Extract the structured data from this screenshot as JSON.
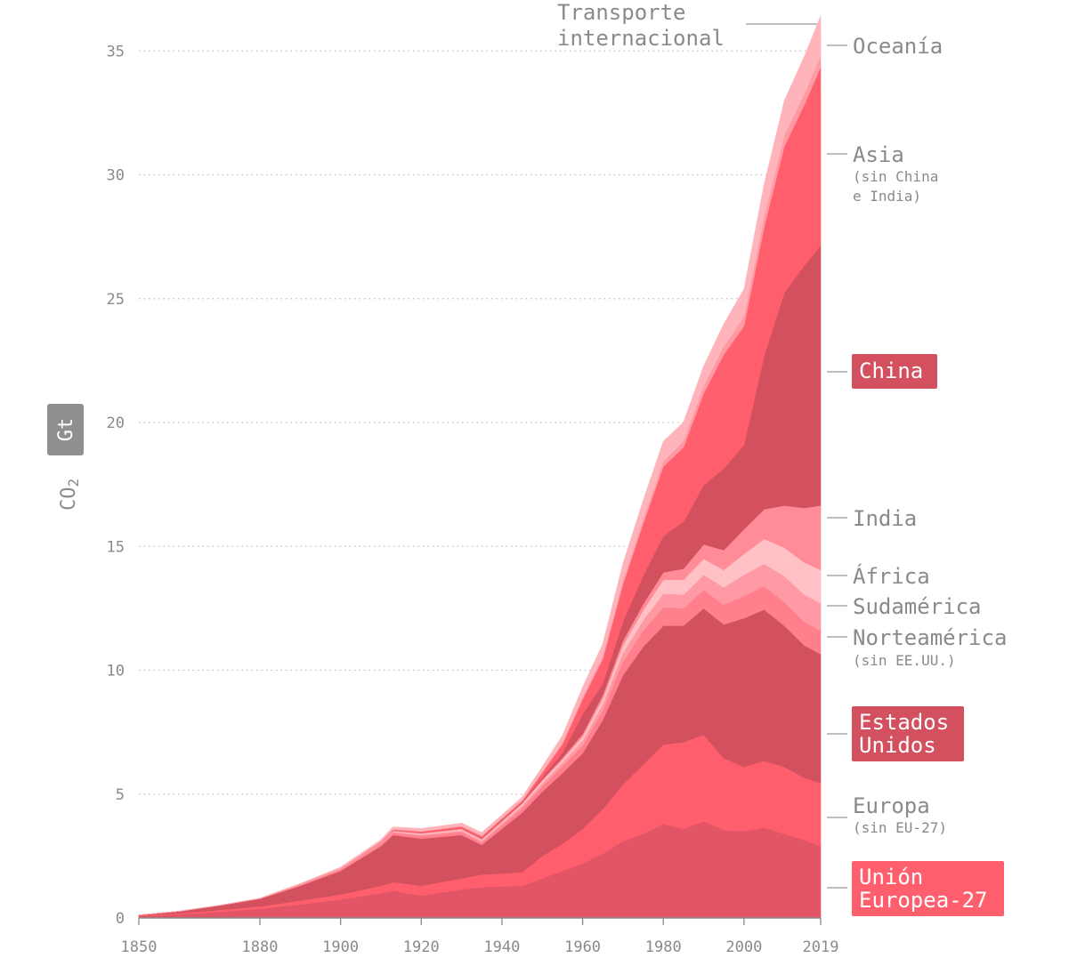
{
  "chart_data": {
    "type": "area",
    "stacked": true,
    "ylabel_main": "CO",
    "ylabel_sub": "2",
    "unit": "Gt",
    "xlim": [
      1850,
      2019
    ],
    "ylim": [
      0,
      36
    ],
    "x_ticks": [
      "1850",
      "1880",
      "1900",
      "1920",
      "1940",
      "1960",
      "1980",
      "2000",
      "2019"
    ],
    "y_ticks": [
      "0",
      "5",
      "10",
      "15",
      "20",
      "25",
      "30",
      "35"
    ],
    "x": [
      1850,
      1860,
      1870,
      1880,
      1890,
      1900,
      1910,
      1913,
      1920,
      1930,
      1935,
      1945,
      1950,
      1955,
      1960,
      1965,
      1970,
      1975,
      1980,
      1985,
      1990,
      1995,
      2000,
      2005,
      2010,
      2015,
      2019
    ],
    "series": [
      {
        "name": "Unión Europea-27",
        "color": "#e25566",
        "values": [
          0.08,
          0.15,
          0.25,
          0.37,
          0.55,
          0.75,
          1.0,
          1.1,
          0.9,
          1.15,
          1.25,
          1.3,
          1.6,
          1.9,
          2.2,
          2.6,
          3.1,
          3.4,
          3.8,
          3.6,
          3.9,
          3.55,
          3.5,
          3.65,
          3.4,
          3.15,
          2.9
        ]
      },
      {
        "name": "Europa (sin EU-27)",
        "color": "#ff5f6d",
        "values": [
          0.02,
          0.04,
          0.07,
          0.1,
          0.15,
          0.2,
          0.3,
          0.35,
          0.4,
          0.45,
          0.5,
          0.55,
          0.9,
          1.1,
          1.4,
          1.8,
          2.3,
          2.8,
          3.2,
          3.5,
          3.5,
          2.9,
          2.6,
          2.7,
          2.7,
          2.5,
          2.55
        ]
      },
      {
        "name": "Estados Unidos",
        "color": "#d3505f",
        "values": [
          0.02,
          0.08,
          0.18,
          0.3,
          0.6,
          0.95,
          1.6,
          1.9,
          1.9,
          1.75,
          1.2,
          2.4,
          2.6,
          2.85,
          3.05,
          3.6,
          4.4,
          4.75,
          4.8,
          4.7,
          5.1,
          5.4,
          6.0,
          6.1,
          5.7,
          5.35,
          5.2
        ]
      },
      {
        "name": "Norteamérica (sin EE.UU.)",
        "color": "#ff808c",
        "values": [
          0.0,
          0.0,
          0.01,
          0.02,
          0.03,
          0.05,
          0.08,
          0.1,
          0.12,
          0.12,
          0.1,
          0.18,
          0.22,
          0.28,
          0.32,
          0.4,
          0.55,
          0.65,
          0.75,
          0.7,
          0.75,
          0.8,
          0.9,
          0.95,
          0.95,
          0.95,
          0.95
        ]
      },
      {
        "name": "Sudamérica",
        "color": "#ff9aa4",
        "values": [
          0.0,
          0.0,
          0.0,
          0.0,
          0.01,
          0.01,
          0.02,
          0.03,
          0.05,
          0.06,
          0.07,
          0.1,
          0.12,
          0.15,
          0.2,
          0.25,
          0.35,
          0.42,
          0.55,
          0.55,
          0.6,
          0.7,
          0.85,
          0.9,
          1.05,
          1.1,
          1.1
        ]
      },
      {
        "name": "África",
        "color": "#ffc0c6",
        "values": [
          0.0,
          0.0,
          0.0,
          0.0,
          0.01,
          0.01,
          0.02,
          0.03,
          0.04,
          0.05,
          0.05,
          0.08,
          0.1,
          0.12,
          0.15,
          0.2,
          0.3,
          0.4,
          0.55,
          0.6,
          0.65,
          0.7,
          0.85,
          1.0,
          1.15,
          1.3,
          1.35
        ]
      },
      {
        "name": "India",
        "color": "#ff8c96",
        "values": [
          0.0,
          0.0,
          0.0,
          0.0,
          0.01,
          0.01,
          0.02,
          0.02,
          0.02,
          0.03,
          0.03,
          0.04,
          0.05,
          0.07,
          0.11,
          0.16,
          0.2,
          0.25,
          0.3,
          0.45,
          0.58,
          0.8,
          1.0,
          1.2,
          1.7,
          2.2,
          2.6
        ]
      },
      {
        "name": "China",
        "color": "#d3505f",
        "values": [
          0.0,
          0.0,
          0.0,
          0.0,
          0.0,
          0.0,
          0.0,
          0.0,
          0.01,
          0.01,
          0.02,
          0.03,
          0.08,
          0.2,
          0.8,
          0.45,
          0.77,
          1.15,
          1.47,
          1.9,
          2.4,
          3.3,
          3.4,
          6.2,
          8.6,
          9.8,
          10.5
        ]
      },
      {
        "name": "Asia (sin China e India)",
        "color": "#ff5f6d",
        "values": [
          0.0,
          0.0,
          0.0,
          0.0,
          0.01,
          0.01,
          0.03,
          0.04,
          0.05,
          0.07,
          0.08,
          0.05,
          0.2,
          0.35,
          0.6,
          1.0,
          1.5,
          2.1,
          2.8,
          3.0,
          3.7,
          4.6,
          4.8,
          5.2,
          5.9,
          6.5,
          7.2
        ]
      },
      {
        "name": "Oceanía",
        "color": "#ff9aa4",
        "values": [
          0.0,
          0.0,
          0.0,
          0.0,
          0.0,
          0.01,
          0.01,
          0.01,
          0.02,
          0.02,
          0.02,
          0.03,
          0.04,
          0.05,
          0.09,
          0.11,
          0.14,
          0.18,
          0.22,
          0.26,
          0.3,
          0.33,
          0.39,
          0.42,
          0.44,
          0.45,
          0.46
        ]
      },
      {
        "name": "Transporte internacional",
        "color": "#ffb3ba",
        "values": [
          0.0,
          0.0,
          0.0,
          0.01,
          0.02,
          0.05,
          0.08,
          0.1,
          0.1,
          0.12,
          0.13,
          0.12,
          0.2,
          0.3,
          0.4,
          0.5,
          0.7,
          0.75,
          0.8,
          0.75,
          0.8,
          0.9,
          1.1,
          1.3,
          1.4,
          1.5,
          1.6
        ]
      }
    ],
    "labels": {
      "transporte": [
        "Transporte",
        "internacional"
      ],
      "oceania": "Oceanía",
      "asia": "Asia",
      "asia_sub": [
        "(sin China",
        "e India)"
      ],
      "china": "China",
      "india": "India",
      "africa": "África",
      "sudamerica": "Sudamérica",
      "norteamerica": "Norteamérica",
      "norteamerica_sub": "(sin EE.UU.)",
      "eeuu": [
        "Estados",
        "Unidos"
      ],
      "europa": "Europa",
      "europa_sub": "(sin EU-27)",
      "ue27": [
        "Unión",
        "Europea-27"
      ]
    },
    "badge_colors": {
      "china": "#d3505f",
      "eeuu": "#d3505f",
      "ue27": "#ff5f6d",
      "unit": "#8f8f8f"
    }
  }
}
